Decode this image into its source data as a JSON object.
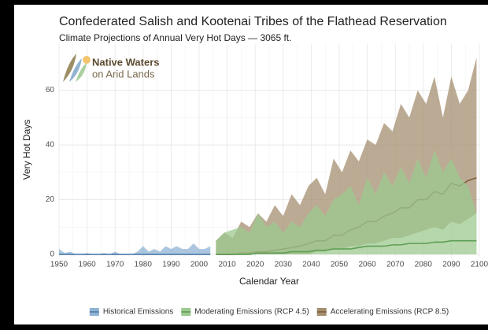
{
  "chart_data": {
    "type": "range-area",
    "title": "Confederated Salish and Kootenai Tribes of the Flathead Reservation",
    "subtitle": "Climate Projections of Annual Very Hot Days — 3065 ft.",
    "logo": {
      "line1": "Native Waters",
      "line2": "on Arid Lands"
    },
    "xlabel": "Calendar Year",
    "ylabel": "Very Hot Days",
    "xlim": [
      1950,
      2100
    ],
    "ylim": [
      -1,
      77
    ],
    "xticks": [
      1950,
      1960,
      1970,
      1980,
      1990,
      2000,
      2010,
      2020,
      2030,
      2040,
      2050,
      2060,
      2070,
      2080,
      2090,
      2100
    ],
    "yticks": [
      0,
      20,
      40,
      60
    ],
    "grid": true,
    "legend": "bottom",
    "series": [
      {
        "name": "Historical Emissions",
        "color": "#8fb3d3",
        "line_color": "#4f7ca8",
        "x": [
          1950,
          1952,
          1954,
          1956,
          1958,
          1960,
          1962,
          1964,
          1966,
          1968,
          1970,
          1972,
          1974,
          1976,
          1978,
          1980,
          1982,
          1984,
          1986,
          1988,
          1990,
          1992,
          1994,
          1996,
          1998,
          2000,
          2002,
          2004
        ],
        "high": [
          2,
          0.5,
          1,
          0,
          0,
          0.5,
          0,
          0,
          0.5,
          0,
          1,
          0,
          0,
          0,
          1,
          3,
          1,
          2,
          1,
          3,
          2,
          3,
          2,
          2,
          4,
          2,
          2,
          3
        ],
        "low": [
          0,
          0,
          0,
          0,
          0,
          0,
          0,
          0,
          0,
          0,
          0,
          0,
          0,
          0,
          0,
          0,
          0,
          0,
          0,
          0,
          0,
          0,
          0,
          0,
          0,
          0,
          0,
          0
        ],
        "median": [
          0,
          0,
          0,
          0,
          0,
          0,
          0,
          0,
          0,
          0,
          0,
          0,
          0,
          0,
          0,
          0,
          0,
          0,
          0,
          0,
          0,
          0,
          0,
          0,
          0,
          0,
          0,
          0
        ]
      },
      {
        "name": "Accelerating Emissions (RCP 8.5)",
        "color": "#a58f70",
        "line_color": "#7d5e3c",
        "x": [
          2006,
          2009,
          2012,
          2015,
          2018,
          2021,
          2024,
          2027,
          2030,
          2033,
          2036,
          2039,
          2042,
          2045,
          2048,
          2051,
          2054,
          2057,
          2060,
          2063,
          2066,
          2069,
          2072,
          2075,
          2078,
          2081,
          2084,
          2087,
          2090,
          2093,
          2096,
          2099
        ],
        "high": [
          5,
          8,
          6,
          12,
          10,
          15,
          12,
          18,
          14,
          22,
          18,
          25,
          28,
          22,
          35,
          30,
          38,
          34,
          42,
          40,
          48,
          45,
          55,
          50,
          60,
          55,
          65,
          50,
          65,
          55,
          60,
          72
        ],
        "low": [
          0,
          0,
          0,
          0,
          0,
          0,
          0,
          0,
          0,
          0,
          0,
          0,
          1,
          1,
          2,
          2,
          3,
          3,
          4,
          4,
          5,
          6,
          6,
          7,
          8,
          9,
          10,
          9,
          12,
          11,
          13,
          15
        ],
        "median": [
          0,
          0,
          0,
          0.5,
          0.5,
          1,
          1,
          1.5,
          2,
          2.5,
          3,
          4,
          5,
          5,
          7,
          7,
          9,
          10,
          12,
          12,
          14,
          15,
          17,
          17,
          20,
          20,
          23,
          22,
          26,
          25,
          27,
          28
        ]
      },
      {
        "name": "Moderating Emissions (RCP 4.5)",
        "color": "#9cc98f",
        "line_color": "#5f9e55",
        "x": [
          2006,
          2009,
          2012,
          2015,
          2018,
          2021,
          2024,
          2027,
          2030,
          2033,
          2036,
          2039,
          2042,
          2045,
          2048,
          2051,
          2054,
          2057,
          2060,
          2063,
          2066,
          2069,
          2072,
          2075,
          2078,
          2081,
          2084,
          2087,
          2090,
          2093,
          2096,
          2099
        ],
        "high": [
          5,
          8,
          9,
          10,
          8,
          15,
          10,
          12,
          8,
          12,
          10,
          15,
          18,
          14,
          20,
          22,
          25,
          18,
          28,
          22,
          30,
          25,
          32,
          26,
          35,
          28,
          38,
          30,
          35,
          28,
          25,
          15
        ],
        "low": [
          0,
          0,
          0,
          0,
          0,
          0,
          0,
          0,
          0,
          0,
          0,
          0,
          0,
          0,
          0,
          0,
          0,
          0,
          0,
          0,
          0,
          0,
          0,
          0,
          0,
          0,
          0,
          0,
          0,
          0,
          0,
          0
        ],
        "median": [
          0,
          0,
          0,
          0,
          0,
          0.5,
          0.5,
          0.5,
          0.5,
          1,
          1,
          1,
          1.5,
          1.5,
          2,
          2,
          2,
          2.5,
          3,
          3,
          3,
          3.5,
          3.5,
          4,
          4,
          4,
          4.5,
          4.5,
          5,
          5,
          5,
          5
        ]
      }
    ]
  }
}
